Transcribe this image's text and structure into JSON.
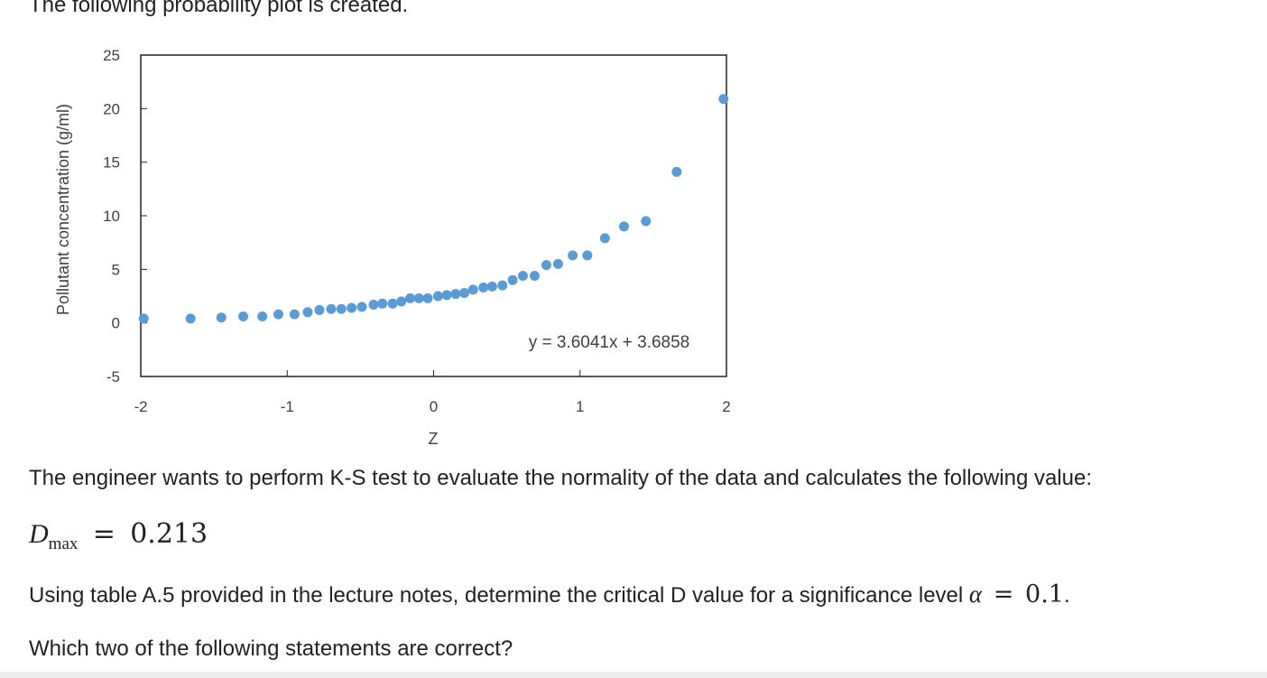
{
  "intro_text": "The following probability plot is created.",
  "chart_data": {
    "type": "scatter",
    "xlabel": "Z",
    "ylabel": "Pollutant concentration (g/ml)",
    "xlim": [
      -2,
      2
    ],
    "ylim": [
      -5,
      25
    ],
    "x_ticks": [
      "-2",
      "-1",
      "0",
      "1",
      "2"
    ],
    "y_ticks": [
      "-5",
      "0",
      "5",
      "10",
      "15",
      "20",
      "25"
    ],
    "trendline_label": "y = 3.6041x + 3.6858",
    "grid": false,
    "marker_color": "#5b9bd5",
    "points": [
      {
        "x": -1.98,
        "y": 0.4
      },
      {
        "x": -1.66,
        "y": 0.4
      },
      {
        "x": -1.45,
        "y": 0.5
      },
      {
        "x": -1.3,
        "y": 0.6
      },
      {
        "x": -1.17,
        "y": 0.6
      },
      {
        "x": -1.06,
        "y": 0.8
      },
      {
        "x": -0.95,
        "y": 0.8
      },
      {
        "x": -0.86,
        "y": 1.0
      },
      {
        "x": -0.78,
        "y": 1.2
      },
      {
        "x": -0.7,
        "y": 1.3
      },
      {
        "x": -0.63,
        "y": 1.3
      },
      {
        "x": -0.56,
        "y": 1.4
      },
      {
        "x": -0.49,
        "y": 1.5
      },
      {
        "x": -0.41,
        "y": 1.7
      },
      {
        "x": -0.35,
        "y": 1.8
      },
      {
        "x": -0.28,
        "y": 1.8
      },
      {
        "x": -0.22,
        "y": 2.0
      },
      {
        "x": -0.16,
        "y": 2.3
      },
      {
        "x": -0.1,
        "y": 2.3
      },
      {
        "x": -0.04,
        "y": 2.3
      },
      {
        "x": 0.03,
        "y": 2.5
      },
      {
        "x": 0.09,
        "y": 2.6
      },
      {
        "x": 0.15,
        "y": 2.7
      },
      {
        "x": 0.21,
        "y": 2.8
      },
      {
        "x": 0.27,
        "y": 3.1
      },
      {
        "x": 0.34,
        "y": 3.3
      },
      {
        "x": 0.4,
        "y": 3.4
      },
      {
        "x": 0.47,
        "y": 3.5
      },
      {
        "x": 0.54,
        "y": 4.0
      },
      {
        "x": 0.61,
        "y": 4.4
      },
      {
        "x": 0.69,
        "y": 4.4
      },
      {
        "x": 0.77,
        "y": 5.4
      },
      {
        "x": 0.85,
        "y": 5.5
      },
      {
        "x": 0.95,
        "y": 6.3
      },
      {
        "x": 1.05,
        "y": 6.3
      },
      {
        "x": 1.17,
        "y": 7.9
      },
      {
        "x": 1.3,
        "y": 9.0
      },
      {
        "x": 1.45,
        "y": 9.5
      },
      {
        "x": 1.66,
        "y": 14.1
      },
      {
        "x": 1.98,
        "y": 20.9
      }
    ]
  },
  "paragraph1": "The engineer wants to perform K-S test to evaluate the normality of the data and calculates the following value:",
  "equation": {
    "symbol": "D",
    "subscript": "max",
    "operator": "=",
    "value": "0.213"
  },
  "paragraph2": {
    "text": "Using table A.5 provided in the lecture notes, determine the critical D value for a significance level ",
    "symbol": "α",
    "operator": "=",
    "value": "0.1",
    "end": "."
  },
  "paragraph3": "Which two of the following statements are correct?"
}
